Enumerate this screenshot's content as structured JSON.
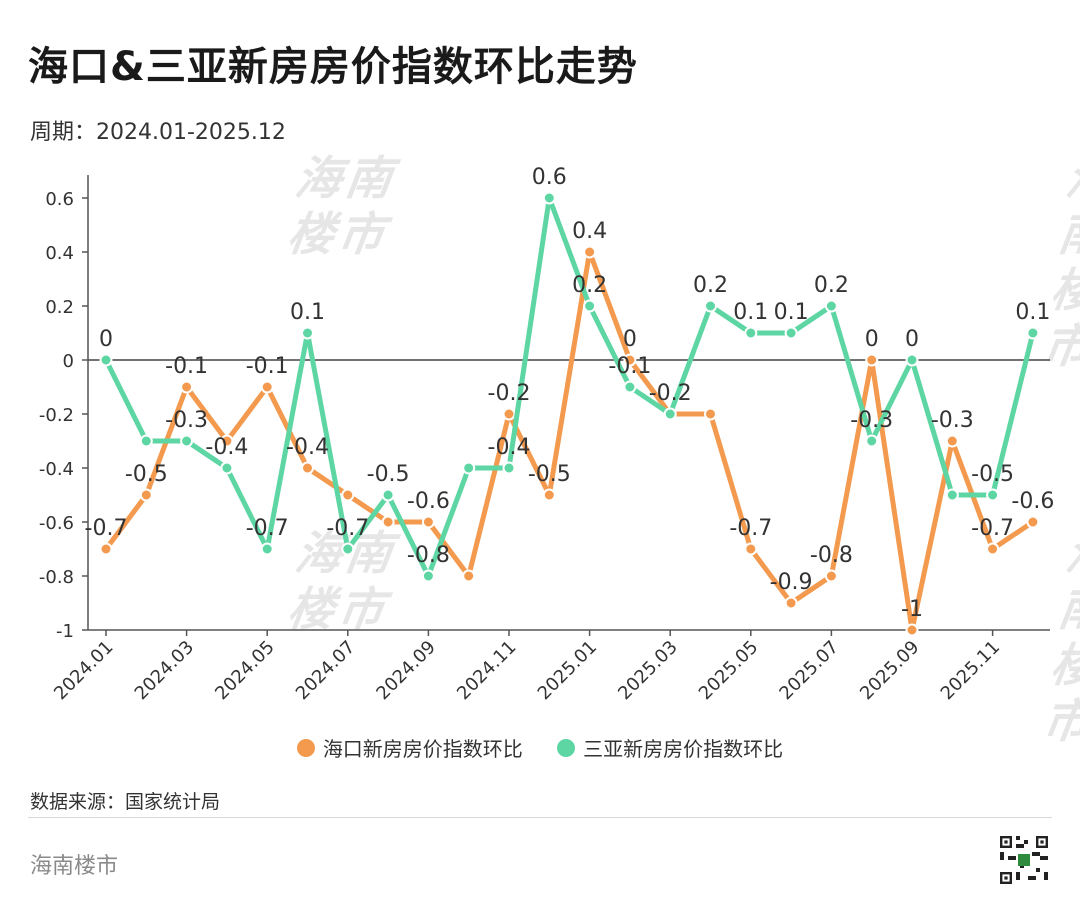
{
  "title": "海口&三亚新房房价指数环比走势",
  "period": "周期：2024.01-2025.12",
  "watermark": {
    "line1": "海南",
    "line2": "楼市"
  },
  "source": "数据来源：国家统计局",
  "brand": "海南楼市",
  "colors": {
    "haikou": "#F39A4F",
    "sanya": "#5DD6A4",
    "axis": "#333333"
  },
  "chart_data": {
    "type": "line",
    "title": "海口&三亚新房房价指数环比走势",
    "xlabel": "",
    "ylabel": "",
    "ylim": [
      -1,
      0.6
    ],
    "yticks": [
      "0.6",
      "0.4",
      "0.2",
      "0",
      "-0.2",
      "-0.4",
      "-0.6",
      "-0.8",
      "-1"
    ],
    "ytick_values": [
      0.6,
      0.4,
      0.2,
      0,
      -0.2,
      -0.4,
      -0.6,
      -0.8,
      -1
    ],
    "x": [
      "2024.01",
      "2024.02",
      "2024.03",
      "2024.04",
      "2024.05",
      "2024.06",
      "2024.07",
      "2024.08",
      "2024.09",
      "2024.10",
      "2024.11",
      "2024.12",
      "2025.01",
      "2025.02",
      "2025.03",
      "2025.04",
      "2025.05",
      "2025.06",
      "2025.07",
      "2025.08",
      "2025.09",
      "2025.10",
      "2025.11",
      "2025.12"
    ],
    "xtick_labels": [
      "2024.01",
      "2024.03",
      "2024.05",
      "2024.07",
      "2024.09",
      "2024.11",
      "2025.01",
      "2025.03",
      "2025.05",
      "2025.07",
      "2025.09",
      "2025.11"
    ],
    "legend_position": "bottom",
    "series": [
      {
        "name": "海口新房房价指数环比",
        "key": "haikou",
        "values": [
          -0.7,
          -0.5,
          -0.1,
          -0.3,
          -0.1,
          -0.4,
          -0.5,
          -0.6,
          -0.6,
          -0.8,
          -0.2,
          -0.5,
          0.4,
          0,
          -0.2,
          -0.2,
          -0.7,
          -0.9,
          -0.8,
          0,
          -1,
          -0.3,
          -0.7,
          -0.6
        ],
        "labels": [
          "-0.7",
          "-0.5",
          "-0.1",
          "-0.3",
          "-0.1",
          "-0.4",
          "-0.5",
          "-0.6",
          "-0.6",
          "-0.8",
          "-0.2",
          "-0.5",
          "0.4",
          "0",
          "-0.2",
          "-0.2",
          "-0.7",
          "-0.9",
          "-0.8",
          "0",
          "-1",
          "-0.3",
          "-0.7",
          "-0.6"
        ],
        "show_label": [
          true,
          true,
          true,
          false,
          true,
          true,
          false,
          false,
          true,
          false,
          true,
          true,
          true,
          true,
          false,
          false,
          true,
          true,
          true,
          true,
          true,
          true,
          true,
          true
        ]
      },
      {
        "name": "三亚新房房价指数环比",
        "key": "sanya",
        "values": [
          0,
          -0.3,
          -0.3,
          -0.4,
          -0.7,
          0.1,
          -0.7,
          -0.5,
          -0.8,
          -0.4,
          -0.4,
          0.6,
          0.2,
          -0.1,
          -0.2,
          0.2,
          0.1,
          0.1,
          0.2,
          -0.3,
          0,
          -0.5,
          -0.5,
          0.1
        ],
        "labels": [
          "0",
          "-0.3",
          "-0.3",
          "-0.4",
          "-0.7",
          "0.1",
          "-0.7",
          "-0.5",
          "-0.8",
          "-0.4",
          "-0.4",
          "0.6",
          "0.2",
          "-0.1",
          "-0.2",
          "0.2",
          "0.1",
          "0.1",
          "0.2",
          "-0.3",
          "0",
          "-0.5",
          "-0.5",
          "0.1"
        ],
        "show_label": [
          true,
          false,
          true,
          true,
          true,
          true,
          true,
          true,
          true,
          false,
          true,
          true,
          true,
          true,
          true,
          true,
          true,
          true,
          true,
          true,
          true,
          false,
          true,
          true
        ]
      }
    ]
  }
}
